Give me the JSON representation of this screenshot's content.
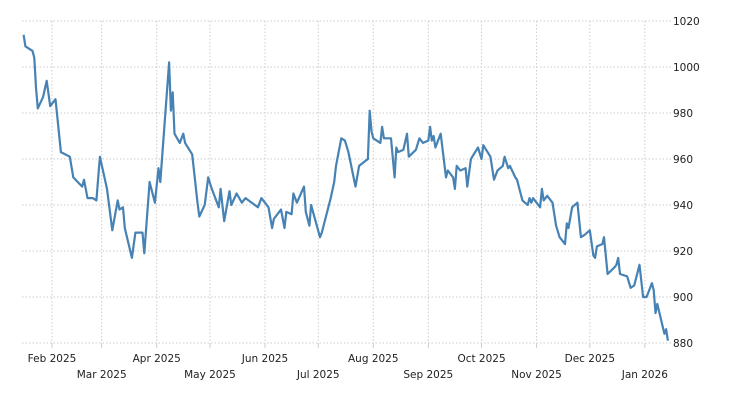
{
  "chart_data": {
    "type": "line",
    "title": "",
    "xlabel": "",
    "ylabel": "",
    "ylim": [
      880,
      1020
    ],
    "yticks": [
      880,
      900,
      920,
      940,
      960,
      980,
      1000,
      1020
    ],
    "xticks": [
      {
        "date": "2025-02-01",
        "label": "Feb 2025"
      },
      {
        "date": "2025-03-01",
        "label": "Mar 2025"
      },
      {
        "date": "2025-04-01",
        "label": "Apr 2025"
      },
      {
        "date": "2025-05-01",
        "label": "May 2025"
      },
      {
        "date": "2025-06-01",
        "label": "Jun 2025"
      },
      {
        "date": "2025-07-01",
        "label": "Jul 2025"
      },
      {
        "date": "2025-08-01",
        "label": "Aug 2025"
      },
      {
        "date": "2025-09-01",
        "label": "Sep 2025"
      },
      {
        "date": "2025-10-01",
        "label": "Oct 2025"
      },
      {
        "date": "2025-11-01",
        "label": "Nov 2025"
      },
      {
        "date": "2025-12-01",
        "label": "Dec 2025"
      },
      {
        "date": "2026-01-01",
        "label": "Jan 2026"
      }
    ],
    "grid": true,
    "y_axis_side": "right",
    "line_color": "#4682b4",
    "grid_color": "#cccccc",
    "series": [
      {
        "x": [
          "2025-01-16",
          "2025-01-17",
          "2025-01-21",
          "2025-01-22",
          "2025-01-23",
          "2025-01-24",
          "2025-01-27",
          "2025-01-29",
          "2025-01-31",
          "2025-02-03",
          "2025-02-06",
          "2025-02-11",
          "2025-02-13",
          "2025-02-18",
          "2025-02-19",
          "2025-02-21",
          "2025-02-24",
          "2025-02-26",
          "2025-02-28",
          "2025-03-04",
          "2025-03-07",
          "2025-03-10",
          "2025-03-11",
          "2025-03-13",
          "2025-03-14",
          "2025-03-18",
          "2025-03-20",
          "2025-03-24",
          "2025-03-25",
          "2025-03-28",
          "2025-03-31",
          "2025-04-02",
          "2025-04-03",
          "2025-04-08",
          "2025-04-09",
          "2025-04-10",
          "2025-04-11",
          "2025-04-14",
          "2025-04-16",
          "2025-04-17",
          "2025-04-21",
          "2025-04-24",
          "2025-04-25",
          "2025-04-28",
          "2025-04-30",
          "2025-05-02",
          "2025-05-06",
          "2025-05-07",
          "2025-05-09",
          "2025-05-12",
          "2025-05-13",
          "2025-05-16",
          "2025-05-19",
          "2025-05-21",
          "2025-05-28",
          "2025-05-30",
          "2025-06-03",
          "2025-06-05",
          "2025-06-06",
          "2025-06-10",
          "2025-06-12",
          "2025-06-13",
          "2025-06-16",
          "2025-06-17",
          "2025-06-19",
          "2025-06-23",
          "2025-06-24",
          "2025-06-26",
          "2025-06-27",
          "2025-07-02",
          "2025-07-03",
          "2025-07-08",
          "2025-07-10",
          "2025-07-11",
          "2025-07-14",
          "2025-07-16",
          "2025-07-18",
          "2025-07-22",
          "2025-07-24",
          "2025-07-29",
          "2025-07-30",
          "2025-07-31",
          "2025-08-01",
          "2025-08-05",
          "2025-08-06",
          "2025-08-07",
          "2025-08-11",
          "2025-08-13",
          "2025-08-14",
          "2025-08-15",
          "2025-08-18",
          "2025-08-20",
          "2025-08-21",
          "2025-08-25",
          "2025-08-27",
          "2025-08-29",
          "2025-09-01",
          "2025-09-02",
          "2025-09-03",
          "2025-09-04",
          "2025-09-05",
          "2025-09-08",
          "2025-09-11",
          "2025-09-12",
          "2025-09-15",
          "2025-09-16",
          "2025-09-17",
          "2025-09-19",
          "2025-09-22",
          "2025-09-23",
          "2025-09-25",
          "2025-09-29",
          "2025-10-01",
          "2025-10-02",
          "2025-10-06",
          "2025-10-08",
          "2025-10-10",
          "2025-10-13",
          "2025-10-14",
          "2025-10-16",
          "2025-10-17",
          "2025-10-20",
          "2025-10-21",
          "2025-10-24",
          "2025-10-27",
          "2025-10-28",
          "2025-10-29",
          "2025-10-30",
          "2025-11-03",
          "2025-11-04",
          "2025-11-05",
          "2025-11-07",
          "2025-11-10",
          "2025-11-12",
          "2025-11-14",
          "2025-11-17",
          "2025-11-18",
          "2025-11-19",
          "2025-11-21",
          "2025-11-24",
          "2025-11-26",
          "2025-11-28",
          "2025-12-01",
          "2025-12-03",
          "2025-12-04",
          "2025-12-05",
          "2025-12-08",
          "2025-12-09",
          "2025-12-11",
          "2025-12-15",
          "2025-12-16",
          "2025-12-17",
          "2025-12-18",
          "2025-12-22",
          "2025-12-24",
          "2025-12-26",
          "2025-12-29",
          "2025-12-31",
          "2026-01-02",
          "2026-01-05",
          "2026-01-06",
          "2026-01-07",
          "2026-01-08",
          "2026-01-12",
          "2026-01-13",
          "2026-01-14"
        ],
        "values": [
          1014,
          1009,
          1007,
          1004,
          991,
          982,
          987,
          994,
          983,
          986,
          963,
          961,
          952,
          948,
          951,
          943,
          943,
          942,
          961,
          947,
          929,
          942,
          938,
          939,
          930,
          917,
          928,
          928,
          919,
          950,
          941,
          956,
          950,
          1002,
          981,
          989,
          971,
          967,
          971,
          967,
          962,
          941,
          935,
          940,
          952,
          947,
          939,
          947,
          933,
          946,
          940,
          945,
          941,
          943,
          939,
          943,
          939,
          930,
          934,
          938,
          930,
          937,
          936,
          945,
          941,
          948,
          937,
          931,
          940,
          926,
          928,
          943,
          950,
          957,
          969,
          968,
          963,
          948,
          957,
          960,
          981,
          972,
          969,
          967,
          974,
          969,
          969,
          952,
          965,
          963,
          964,
          971,
          961,
          964,
          969,
          967,
          968,
          974,
          968,
          970,
          965,
          971,
          952,
          955,
          952,
          947,
          957,
          955,
          956,
          948,
          960,
          965,
          960,
          966,
          961,
          951,
          955,
          957,
          961,
          956,
          957,
          952,
          951,
          942,
          940,
          943,
          941,
          943,
          939,
          947,
          942,
          944,
          941,
          931,
          926,
          923,
          932,
          930,
          939,
          941,
          926,
          927,
          929,
          918,
          917,
          922,
          923,
          926,
          910,
          913,
          914,
          917,
          910,
          909,
          904,
          905,
          914,
          900,
          900,
          906,
          903,
          893,
          897,
          884,
          886,
          881
        ]
      }
    ]
  }
}
